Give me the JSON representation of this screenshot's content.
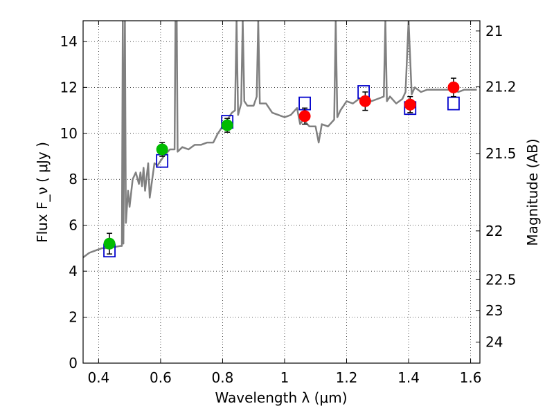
{
  "chart_data": {
    "type": "scatter",
    "xlabel": "Wavelength  λ (μm)",
    "ylabel": "Flux  F_ν  ( μJy )",
    "y2label": "Magnitude (AB)",
    "xlim": [
      0.35,
      1.63
    ],
    "ylim": [
      0,
      14.9
    ],
    "grid": true,
    "x_ticks": [
      0.4,
      0.6,
      0.8,
      1.0,
      1.2,
      1.4,
      1.6
    ],
    "x_tick_labels": [
      "0.4",
      "0.6",
      "0.8",
      "1",
      "1.2",
      "1.4",
      "1.6"
    ],
    "y_ticks": [
      0,
      2,
      4,
      6,
      8,
      10,
      12,
      14
    ],
    "y_tick_labels": [
      "0",
      "2",
      "4",
      "6",
      "8",
      "10",
      "12",
      "14"
    ],
    "mag_ticks": [
      21,
      21.2,
      21.5,
      22,
      22.5,
      23,
      24
    ],
    "mag_tick_labels": [
      "21",
      "21.2",
      "21.5",
      "22",
      "22.5",
      "23",
      "24"
    ],
    "series": [
      {
        "kind": "spectrum",
        "color": "#808080",
        "points": [
          [
            0.35,
            4.6
          ],
          [
            0.37,
            4.8
          ],
          [
            0.39,
            4.9
          ],
          [
            0.41,
            5.0
          ],
          [
            0.43,
            5.0
          ],
          [
            0.45,
            5.05
          ],
          [
            0.47,
            5.1
          ],
          [
            0.475,
            5.1
          ],
          [
            0.478,
            14.9
          ],
          [
            0.48,
            5.2
          ],
          [
            0.485,
            14.9
          ],
          [
            0.488,
            6.1
          ],
          [
            0.495,
            7.5
          ],
          [
            0.5,
            6.8
          ],
          [
            0.51,
            8.0
          ],
          [
            0.52,
            8.3
          ],
          [
            0.53,
            7.8
          ],
          [
            0.535,
            8.3
          ],
          [
            0.54,
            7.7
          ],
          [
            0.545,
            8.5
          ],
          [
            0.55,
            7.5
          ],
          [
            0.56,
            8.7
          ],
          [
            0.565,
            7.2
          ],
          [
            0.58,
            8.7
          ],
          [
            0.59,
            8.6
          ],
          [
            0.61,
            9.0
          ],
          [
            0.63,
            9.3
          ],
          [
            0.645,
            9.3
          ],
          [
            0.648,
            14.9
          ],
          [
            0.652,
            14.9
          ],
          [
            0.655,
            9.2
          ],
          [
            0.67,
            9.4
          ],
          [
            0.69,
            9.3
          ],
          [
            0.71,
            9.5
          ],
          [
            0.73,
            9.5
          ],
          [
            0.75,
            9.6
          ],
          [
            0.77,
            9.6
          ],
          [
            0.785,
            10.0
          ],
          [
            0.8,
            10.3
          ],
          [
            0.815,
            10.6
          ],
          [
            0.83,
            10.9
          ],
          [
            0.84,
            11.0
          ],
          [
            0.845,
            14.9
          ],
          [
            0.85,
            10.8
          ],
          [
            0.86,
            11.3
          ],
          [
            0.865,
            14.9
          ],
          [
            0.87,
            11.4
          ],
          [
            0.88,
            11.2
          ],
          [
            0.9,
            11.2
          ],
          [
            0.91,
            11.6
          ],
          [
            0.915,
            14.9
          ],
          [
            0.92,
            11.3
          ],
          [
            0.94,
            11.3
          ],
          [
            0.96,
            10.9
          ],
          [
            0.98,
            10.8
          ],
          [
            1.0,
            10.7
          ],
          [
            1.02,
            10.8
          ],
          [
            1.04,
            11.1
          ],
          [
            1.05,
            10.4
          ],
          [
            1.06,
            10.6
          ],
          [
            1.08,
            10.3
          ],
          [
            1.1,
            10.3
          ],
          [
            1.11,
            9.6
          ],
          [
            1.12,
            10.4
          ],
          [
            1.14,
            10.3
          ],
          [
            1.16,
            10.6
          ],
          [
            1.165,
            14.9
          ],
          [
            1.17,
            10.7
          ],
          [
            1.18,
            11.0
          ],
          [
            1.2,
            11.4
          ],
          [
            1.22,
            11.3
          ],
          [
            1.24,
            11.5
          ],
          [
            1.26,
            11.6
          ],
          [
            1.28,
            11.4
          ],
          [
            1.3,
            11.5
          ],
          [
            1.32,
            11.6
          ],
          [
            1.325,
            14.9
          ],
          [
            1.33,
            11.4
          ],
          [
            1.34,
            11.6
          ],
          [
            1.36,
            11.3
          ],
          [
            1.38,
            11.5
          ],
          [
            1.39,
            11.8
          ],
          [
            1.4,
            14.9
          ],
          [
            1.41,
            11.7
          ],
          [
            1.42,
            12.0
          ],
          [
            1.44,
            11.8
          ],
          [
            1.46,
            11.9
          ],
          [
            1.48,
            11.9
          ],
          [
            1.5,
            11.9
          ],
          [
            1.52,
            11.9
          ],
          [
            1.54,
            11.9
          ],
          [
            1.56,
            11.8
          ],
          [
            1.58,
            11.9
          ],
          [
            1.6,
            11.9
          ],
          [
            1.62,
            11.9
          ]
        ]
      },
      {
        "kind": "model-boxes",
        "color": "#0000cc",
        "points": [
          [
            0.435,
            4.9
          ],
          [
            0.605,
            8.8
          ],
          [
            0.815,
            10.5
          ],
          [
            1.065,
            11.3
          ],
          [
            1.255,
            11.8
          ],
          [
            1.405,
            11.1
          ],
          [
            1.545,
            11.3
          ]
        ]
      },
      {
        "kind": "observed-green",
        "color": "#00bb00",
        "points": [
          [
            0.435,
            5.2
          ],
          [
            0.605,
            9.3
          ],
          [
            0.815,
            10.35
          ]
        ],
        "err": [
          0.45,
          0.3,
          0.3
        ]
      },
      {
        "kind": "observed-red",
        "color": "#ff0000",
        "points": [
          [
            1.065,
            10.75
          ],
          [
            1.26,
            11.4
          ],
          [
            1.405,
            11.25
          ],
          [
            1.545,
            12.0
          ]
        ],
        "err": [
          0.35,
          0.4,
          0.35,
          0.4
        ]
      }
    ]
  }
}
